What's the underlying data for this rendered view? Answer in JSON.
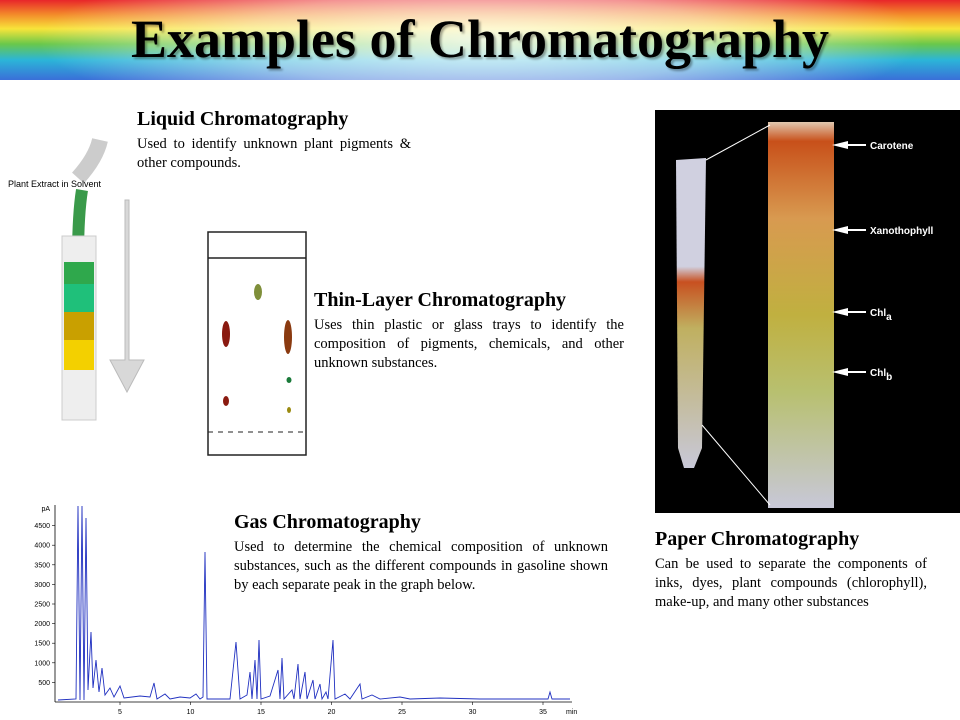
{
  "title": "Examples of Chromatography",
  "sections": [
    {
      "heading": "Liquid Chromatography",
      "body": "Used to identify unknown plant pigments & other compounds."
    },
    {
      "heading": "Thin-Layer Chromatography",
      "body": "Uses thin plastic or glass trays to identify the composition of pigments, chemicals, and other unknown substances."
    },
    {
      "heading": "Gas Chromatography",
      "body": "Used to determine the chemical composition of unknown substances, such as the different compounds in gasoline shown by each separate peak in the graph below."
    },
    {
      "heading": "Paper Chromatography",
      "body": "Can be used to separate the components of inks, dyes, plant compounds (chlorophyll), make-up, and many other substances"
    }
  ],
  "liquid_figure": {
    "label": "Plant Extract in Solvent"
  },
  "paper_figure": {
    "bands": [
      {
        "name": "Carotene"
      },
      {
        "name": "Xanothophyll"
      },
      {
        "name": "Chl",
        "sub": "a"
      },
      {
        "name": "Chl",
        "sub": "b"
      }
    ]
  },
  "gas_figure": {
    "y_unit": "pA",
    "x_unit": "min",
    "yticks": [
      500,
      1000,
      1500,
      2000,
      2500,
      3000,
      3500,
      4000,
      4500
    ],
    "xticks": [
      5,
      10,
      15,
      20,
      25,
      30,
      35
    ]
  }
}
